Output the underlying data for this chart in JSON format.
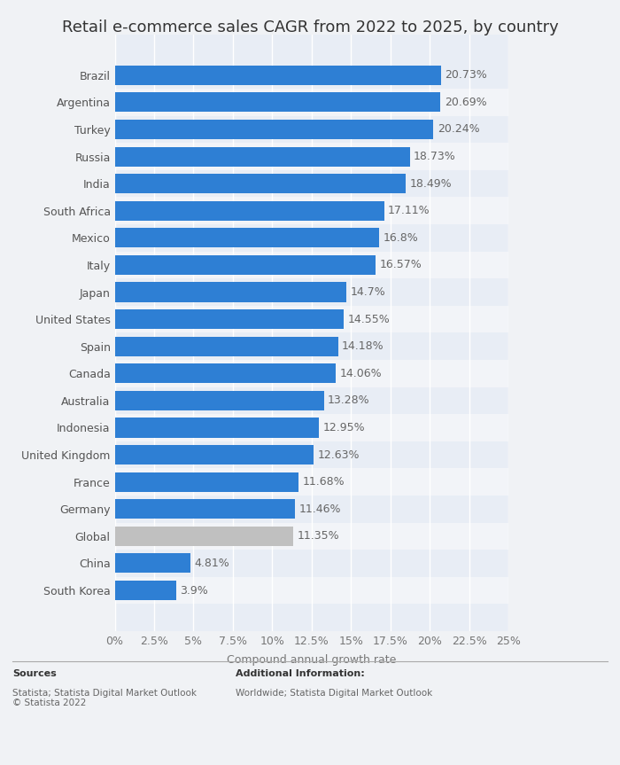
{
  "title": "Retail e-commerce sales CAGR from 2022 to 2025, by country",
  "xlabel": "Compound annual growth rate",
  "countries": [
    "Brazil",
    "Argentina",
    "Turkey",
    "Russia",
    "India",
    "South Africa",
    "Mexico",
    "Italy",
    "Japan",
    "United States",
    "Spain",
    "Canada",
    "Australia",
    "Indonesia",
    "United Kingdom",
    "France",
    "Germany",
    "Global",
    "China",
    "South Korea"
  ],
  "values": [
    20.73,
    20.69,
    20.24,
    18.73,
    18.49,
    17.11,
    16.8,
    16.57,
    14.7,
    14.55,
    14.18,
    14.06,
    13.28,
    12.95,
    12.63,
    11.68,
    11.46,
    11.35,
    4.81,
    3.9
  ],
  "labels": [
    "20.73%",
    "20.69%",
    "20.24%",
    "18.73%",
    "18.49%",
    "17.11%",
    "16.8%",
    "16.57%",
    "14.7%",
    "14.55%",
    "14.18%",
    "14.06%",
    "13.28%",
    "12.95%",
    "12.63%",
    "11.68%",
    "11.46%",
    "11.35%",
    "4.81%",
    "3.9%"
  ],
  "bar_colors": [
    "#2e7fd4",
    "#2e7fd4",
    "#2e7fd4",
    "#2e7fd4",
    "#2e7fd4",
    "#2e7fd4",
    "#2e7fd4",
    "#2e7fd4",
    "#2e7fd4",
    "#2e7fd4",
    "#2e7fd4",
    "#2e7fd4",
    "#2e7fd4",
    "#2e7fd4",
    "#2e7fd4",
    "#2e7fd4",
    "#2e7fd4",
    "#c0c0c0",
    "#2e7fd4",
    "#2e7fd4"
  ],
  "row_colors": [
    "#e8edf5",
    "#f2f4f8",
    "#e8edf5",
    "#f2f4f8",
    "#e8edf5",
    "#f2f4f8",
    "#e8edf5",
    "#f2f4f8",
    "#e8edf5",
    "#f2f4f8",
    "#e8edf5",
    "#f2f4f8",
    "#e8edf5",
    "#f2f4f8",
    "#e8edf5",
    "#f2f4f8",
    "#e8edf5",
    "#f2f4f8",
    "#e8edf5",
    "#f2f4f8"
  ],
  "xlim": [
    0,
    25
  ],
  "xtick_values": [
    0,
    2.5,
    5,
    7.5,
    10,
    12.5,
    15,
    17.5,
    20,
    22.5,
    25
  ],
  "xtick_labels": [
    "0%",
    "2.5%",
    "5%",
    "7.5%",
    "10%",
    "12.5%",
    "15%",
    "17.5%",
    "20%",
    "22.5%",
    "25%"
  ],
  "background_color": "#f0f2f5",
  "plot_bg_color": "#e8edf5",
  "title_fontsize": 13,
  "label_fontsize": 9,
  "tick_fontsize": 9,
  "sources_line1": "Sources",
  "sources_line2": "Statista; Statista Digital Market Outlook\n© Statista 2022",
  "additional_line1": "Additional Information:",
  "additional_line2": "Worldwide; Statista Digital Market Outlook"
}
